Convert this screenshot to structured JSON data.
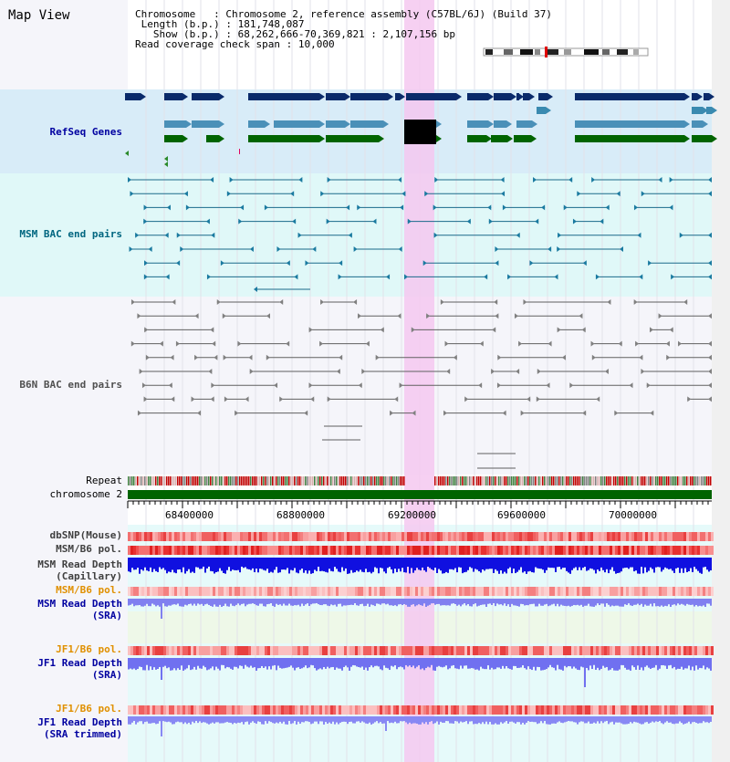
{
  "title": "Map View",
  "info": {
    "chromosome_key": "Chromosome",
    "chromosome_val": "Chromosome 2, reference assembly (C57BL/6J) (Build 37)",
    "length_key": "Length (b.p.)",
    "length_val": "181,748,087",
    "show_key": "Show (b.p.)",
    "show_val": "68,262,666-70,369,821 : 2,107,156 bp",
    "coverage_key": "Read coverage check span",
    "coverage_val": "10,000"
  },
  "tracks": {
    "refseq": "RefSeq Genes",
    "msm_bac": "MSM BAC end pairs",
    "b6n_bac": "B6N BAC end pairs",
    "repeat": "Repeat",
    "chromosome": "chromosome 2",
    "dbsnp": "dbSNP(Mouse)",
    "msm_b6_pol": "MSM/B6 pol.",
    "msm_depth_cap_1": "MSM Read Depth",
    "msm_depth_cap_2": "(Capillary)",
    "msm_b6_pol_2": "MSM/B6 pol.",
    "msm_depth_sra_1": "MSM Read Depth",
    "msm_depth_sra_2": "(SRA)",
    "jf1_b6_pol": "JF1/B6 pol.",
    "jf1_depth_sra_1": "JF1 Read Depth",
    "jf1_depth_sra_2": "(SRA)",
    "jf1_b6_pol_2": "JF1/B6 pol.",
    "jf1_depth_trim_1": "JF1 Read Depth",
    "jf1_depth_trim_2": "(SRA trimmed)"
  },
  "axis_ticks": [
    "68400000",
    "68800000",
    "69200000",
    "69600000",
    "70000000"
  ],
  "colors": {
    "refseq_label": "#0000a0",
    "msm_label": "#006680",
    "b6n_label": "#505050",
    "orange_label": "#e09000",
    "blue_label": "#0000a0",
    "highlight": "#f5c8f0",
    "chromosome_bar": "#006400"
  }
}
